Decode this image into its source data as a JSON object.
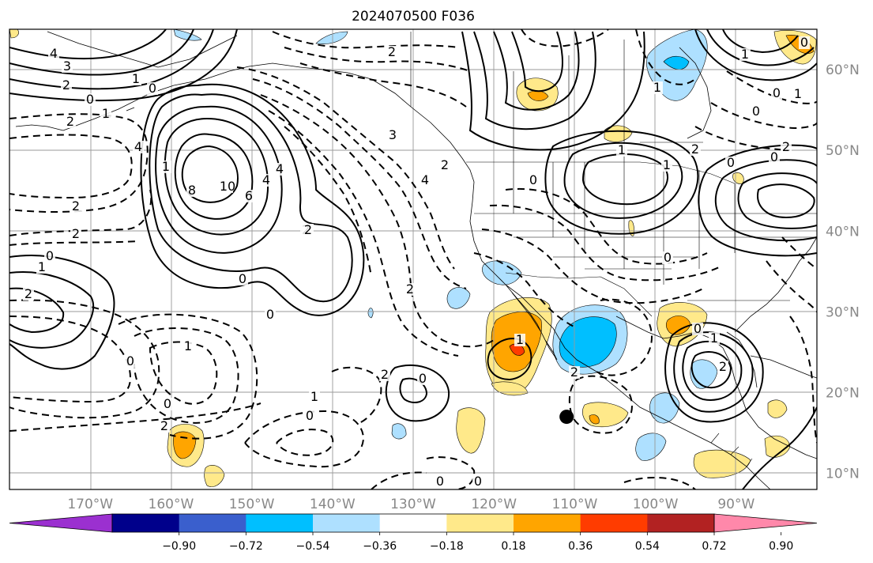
{
  "title": "2024070500 F036",
  "map": {
    "lon_range": [
      -180,
      -80
    ],
    "lat_range": [
      8,
      65
    ],
    "lon_ticks": [
      "170°W",
      "160°W",
      "150°W",
      "140°W",
      "130°W",
      "120°W",
      "110°W",
      "100°W",
      "90°W"
    ],
    "lat_ticks": [
      "60°N",
      "50°N",
      "40°N",
      "30°N",
      "20°N",
      "10°N"
    ],
    "grid": true,
    "marker": {
      "lon": -111,
      "lat": 17,
      "color": "#000000"
    }
  },
  "contour_labels": [
    "4",
    "3",
    "2",
    "0",
    "1",
    "2",
    "1",
    "0",
    "2",
    "1",
    "2",
    "4",
    "3",
    "2",
    "4",
    "2",
    "2",
    "0",
    "1",
    "8",
    "10",
    "6",
    "4",
    "2",
    "0",
    "4",
    "2",
    "0",
    "1",
    "2",
    "0",
    "0",
    "2",
    "1",
    "0",
    "2",
    "0",
    "1",
    "0",
    "1",
    "0",
    "0",
    "2",
    "1",
    "0",
    "0",
    "1",
    "0",
    "1",
    "2",
    "0",
    "1",
    "2",
    "2",
    "0",
    "1",
    "0",
    "0"
  ],
  "colorbar": {
    "ticks": [
      "−0.90",
      "−0.72",
      "−0.54",
      "−0.36",
      "−0.18",
      "0.18",
      "0.36",
      "0.54",
      "0.72",
      "0.90"
    ],
    "colors": [
      "#9b30d0",
      "#00008b",
      "#3a5fcd",
      "#00bfff",
      "#aee0ff",
      "#ffffff",
      "#ffe98a",
      "#ffa500",
      "#ff3c00",
      "#b22222",
      "#ff88aa"
    ],
    "extend": "both"
  }
}
